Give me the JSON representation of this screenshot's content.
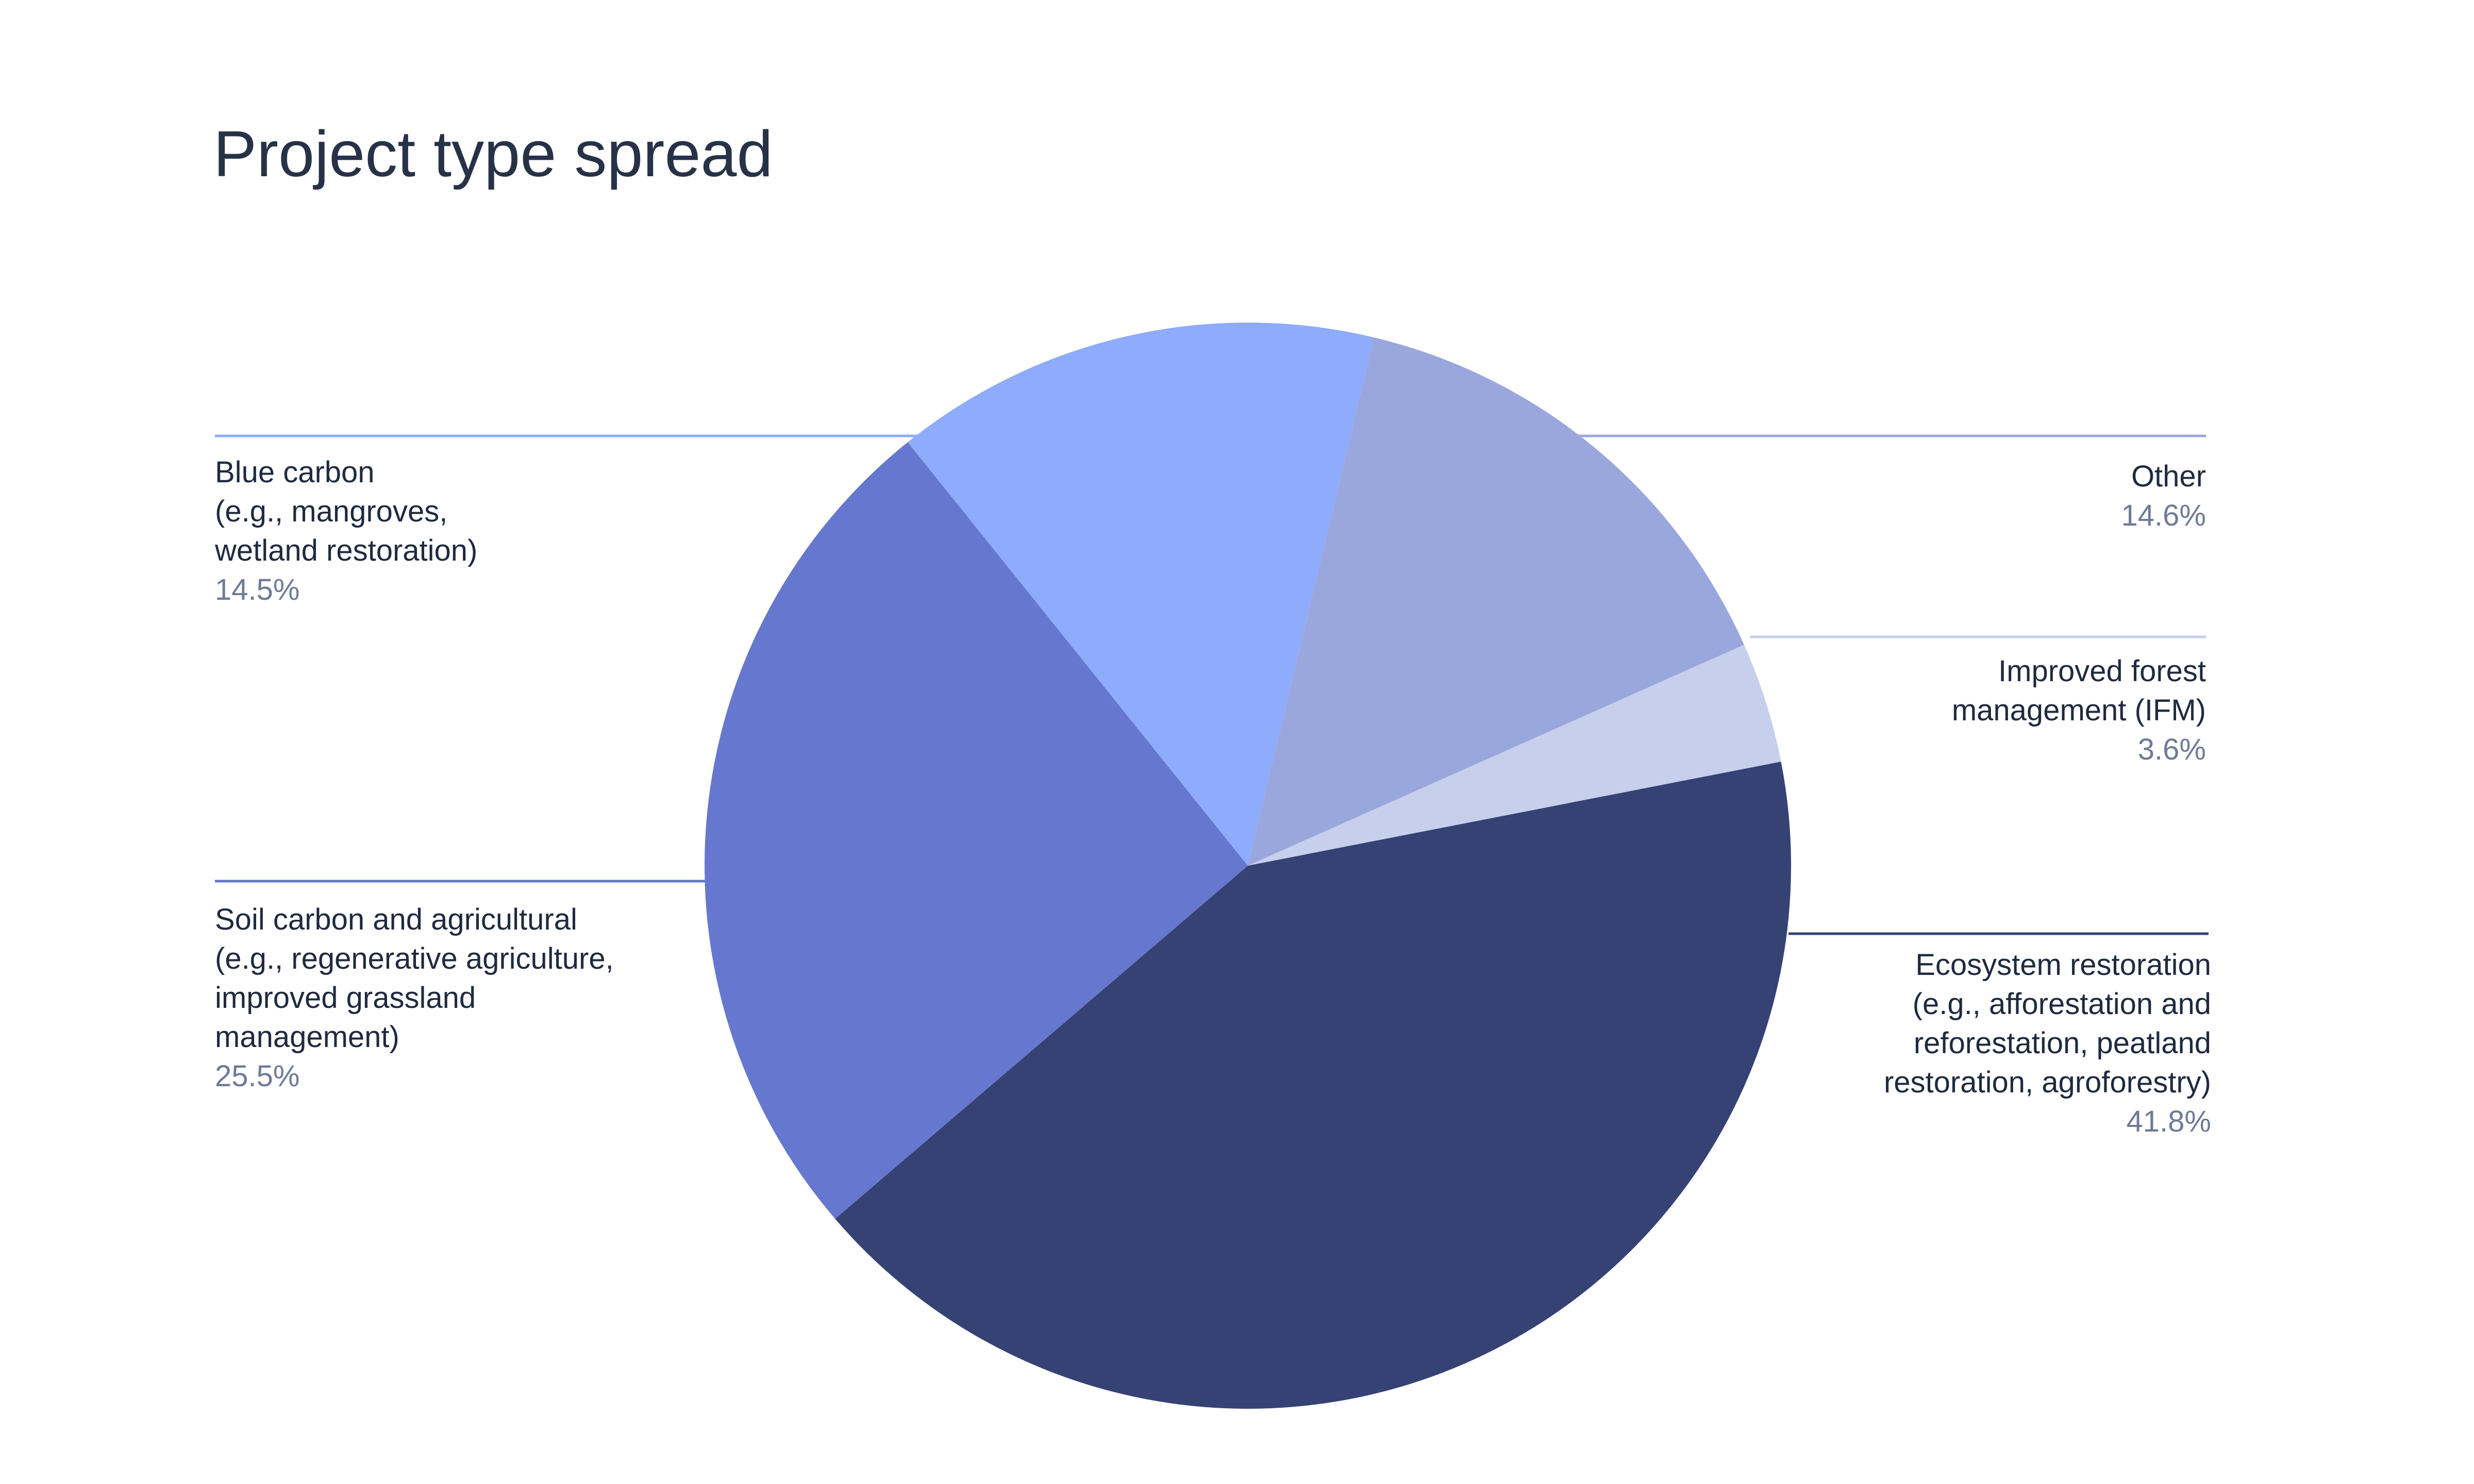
{
  "chart_data": {
    "type": "pie",
    "title": "Project type spread",
    "slices": [
      {
        "label_lines": [
          "Ecosystem restoration",
          "(e.g., afforestation and",
          "reforestation, peatland",
          "restoration, agroforestry)"
        ],
        "value": 41.8,
        "value_label": "41.8%",
        "color": "#364274"
      },
      {
        "label_lines": [
          "Soil carbon and agricultural",
          "(e.g., regenerative agriculture,",
          "improved grassland",
          "management)"
        ],
        "value": 25.5,
        "value_label": "25.5%",
        "color": "#6677cf"
      },
      {
        "label_lines": [
          "Blue carbon",
          "(e.g., mangroves,",
          "wetland restoration)"
        ],
        "value": 14.5,
        "value_label": "14.5%",
        "color": "#8fabfc"
      },
      {
        "label_lines": [
          "Other"
        ],
        "value": 14.6,
        "value_label": "14.6%",
        "color": "#9aa7dd"
      },
      {
        "label_lines": [
          "Improved forest",
          "management (IFM)"
        ],
        "value": 3.6,
        "value_label": "3.6%",
        "color": "#c6cfec"
      }
    ],
    "start_slice": "Improved forest management (IFM)",
    "direction": "clockwise",
    "legend": "none (direct labels)"
  }
}
